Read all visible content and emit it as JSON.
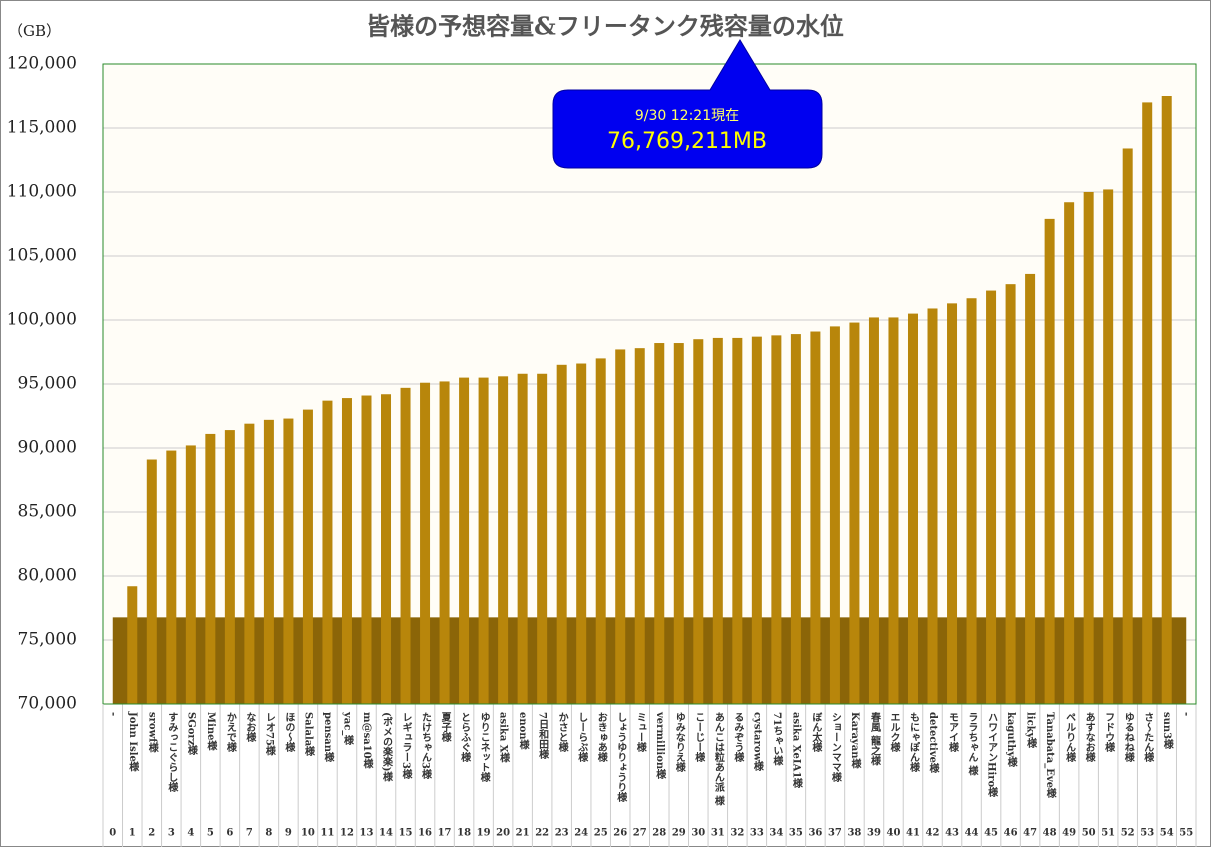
{
  "chart_data": {
    "type": "bar",
    "title": "皆様の予想容量&フリータンク残容量の水位",
    "y_label": "（GB）",
    "annotation": {
      "date": "9/30 12:21現在",
      "value": "76,769,211MB"
    },
    "water_level": 76769.211,
    "water_color": "#8b6508",
    "color": "#b8860b",
    "grid": true,
    "categories": [
      "-",
      "John Isle様",
      "srowf様",
      "すみっこぐらし様",
      "SGorz様",
      "Mine様",
      "かえで様",
      "なお様",
      "レオ75様",
      "ほの〜様",
      "Salala様",
      "pensan様",
      "yac_様",
      "m@sa10様",
      "(ボメの楽楽)様",
      "レギュラー3様",
      "たけちゃん3様",
      "夏子様",
      "とらふぐ様",
      "ゆりこネット様",
      "asika X様",
      "enon様",
      "7日和田様",
      "かさと様",
      "しーらぶ様",
      "おきゅあ様",
      "しょうゆりょうり様",
      "ミュー様",
      "vermillion様",
      "ゆみなりえ様",
      "こーじー様",
      "あんこは粒あん派 様",
      "るみぞう様",
      "cystarow様",
      "71ちゃい様",
      "asika XeIA1様",
      "ぼん太様",
      "ショーンママ様",
      "Karayan様",
      "春風 龍之様",
      "エルク様",
      "もにゃぽん様",
      "detective様",
      "モアイ様",
      "ララちゃん 様",
      "ハワイアンHiro様",
      "kaguthy様",
      "licky様",
      "Tanabata_Eve様",
      "ペルりん様",
      "あすなお様",
      "フドウ様",
      "ゆるねね様",
      "さ〜たん様",
      "sun3様",
      "-"
    ],
    "category_numbers": [
      0,
      1,
      2,
      3,
      4,
      5,
      6,
      7,
      8,
      9,
      10,
      11,
      12,
      13,
      14,
      15,
      16,
      17,
      18,
      19,
      20,
      21,
      22,
      23,
      24,
      25,
      26,
      27,
      28,
      29,
      30,
      31,
      32,
      33,
      34,
      35,
      36,
      37,
      38,
      39,
      40,
      41,
      42,
      43,
      44,
      45,
      46,
      47,
      48,
      49,
      50,
      51,
      52,
      53,
      54,
      55
    ],
    "values": [
      null,
      79200,
      89100,
      89800,
      90200,
      91100,
      91400,
      91900,
      92200,
      92300,
      93000,
      93700,
      93900,
      94100,
      94200,
      94700,
      95100,
      95200,
      95500,
      95500,
      95600,
      95800,
      95800,
      96500,
      96600,
      97000,
      97700,
      97800,
      98200,
      98200,
      98500,
      98600,
      98600,
      98700,
      98800,
      98900,
      99100,
      99500,
      99800,
      100200,
      100200,
      100500,
      100900,
      101300,
      101700,
      102300,
      102800,
      103600,
      107900,
      109200,
      110000,
      110200,
      113400,
      117000,
      117500,
      null
    ],
    "ylim": [
      70000,
      120000
    ],
    "yticks": [
      {
        "value": 70000,
        "label": "70,000"
      },
      {
        "value": 75000,
        "label": "75,000"
      },
      {
        "value": 80000,
        "label": "80,000"
      },
      {
        "value": 85000,
        "label": "85,000"
      },
      {
        "value": 90000,
        "label": "90,000"
      },
      {
        "value": 95000,
        "label": "95,000"
      },
      {
        "value": 100000,
        "label": "100,000"
      },
      {
        "value": 105000,
        "label": "105,000"
      },
      {
        "value": 110000,
        "label": "110,000"
      },
      {
        "value": 115000,
        "label": "115,000"
      },
      {
        "value": 120000,
        "label": "120,000"
      }
    ]
  }
}
